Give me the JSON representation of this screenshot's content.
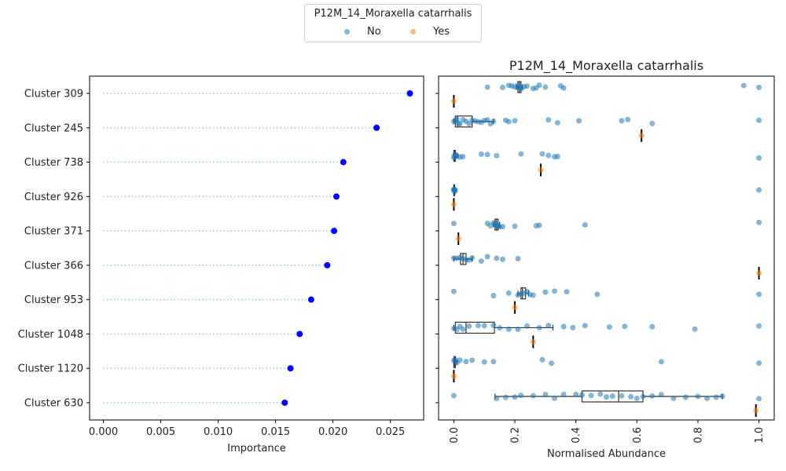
{
  "legend": {
    "title": "P12M_14_Moraxella catarrhalis",
    "items": [
      {
        "label": "No",
        "color": "#8ab4d8"
      },
      {
        "label": "Yes",
        "color": "#f6bc85"
      }
    ]
  },
  "chart_data": [
    {
      "type": "scatter",
      "subtype": "lollipop",
      "title": "",
      "xlabel": "Importance",
      "ylabel": "",
      "xlim": [
        -0.0012,
        0.0279
      ],
      "xticks": [
        "0.000",
        "0.005",
        "0.010",
        "0.015",
        "0.020",
        "0.025"
      ],
      "categories": [
        "Cluster 309",
        "Cluster 245",
        "Cluster 738",
        "Cluster 926",
        "Cluster 371",
        "Cluster 366",
        "Cluster 953",
        "Cluster 1048",
        "Cluster 1120",
        "Cluster 630"
      ],
      "values": [
        0.0267,
        0.0238,
        0.0209,
        0.0203,
        0.0201,
        0.0195,
        0.0181,
        0.0171,
        0.0163,
        0.0158
      ],
      "point_color": "#0000ff",
      "line_color": "#87ceeb",
      "grid": false
    },
    {
      "type": "box",
      "title": "P12M_14_Moraxella catarrhalis",
      "xlabel": "Normalised Abundance",
      "ylabel": "",
      "xlim": [
        -0.05,
        1.05
      ],
      "xticks": [
        "0.0",
        "0.2",
        "0.4",
        "0.6",
        "0.8",
        "1.0"
      ],
      "categories": [
        "Cluster 309",
        "Cluster 245",
        "Cluster 738",
        "Cluster 926",
        "Cluster 371",
        "Cluster 366",
        "Cluster 953",
        "Cluster 1048",
        "Cluster 1120",
        "Cluster 630"
      ],
      "series": [
        {
          "name": "No",
          "color": "#1f77b4",
          "boxes": [
            {
              "q1": 0.21,
              "median": 0.215,
              "q3": 0.22,
              "whisker_low": 0.205,
              "whisker_high": 0.225
            },
            {
              "q1": 0.005,
              "median": 0.012,
              "q3": 0.06,
              "whisker_low": 0.0,
              "whisker_high": 0.13
            },
            {
              "q1": 0.0,
              "median": 0.002,
              "q3": 0.005,
              "whisker_low": 0.0,
              "whisker_high": 0.01
            },
            {
              "q1": 0.0,
              "median": 0.0,
              "q3": 0.002,
              "whisker_low": 0.0,
              "whisker_high": 0.005
            },
            {
              "q1": 0.135,
              "median": 0.14,
              "q3": 0.145,
              "whisker_low": 0.13,
              "whisker_high": 0.15
            },
            {
              "q1": 0.022,
              "median": 0.03,
              "q3": 0.04,
              "whisker_low": 0.0,
              "whisker_high": 0.06
            },
            {
              "q1": 0.22,
              "median": 0.225,
              "q3": 0.235,
              "whisker_low": 0.21,
              "whisker_high": 0.245
            },
            {
              "q1": 0.005,
              "median": 0.04,
              "q3": 0.133,
              "whisker_low": 0.0,
              "whisker_high": 0.325
            },
            {
              "q1": 0.0,
              "median": 0.002,
              "q3": 0.005,
              "whisker_low": 0.0,
              "whisker_high": 0.01
            },
            {
              "q1": 0.42,
              "median": 0.54,
              "q3": 0.62,
              "whisker_low": 0.135,
              "whisker_high": 0.88
            }
          ],
          "points": [
            [
              0.11,
              0.16,
              0.18,
              0.19,
              0.2,
              0.21,
              0.21,
              0.22,
              0.22,
              0.23,
              0.24,
              0.26,
              0.27,
              0.28,
              0.3,
              0.35,
              0.36,
              0.95,
              1.0
            ],
            [
              0.0,
              0.005,
              0.01,
              0.015,
              0.02,
              0.03,
              0.04,
              0.05,
              0.06,
              0.07,
              0.08,
              0.09,
              0.1,
              0.11,
              0.12,
              0.13,
              0.17,
              0.18,
              0.2,
              0.31,
              0.34,
              0.41,
              0.55,
              0.57,
              0.65,
              1.0
            ],
            [
              0.0,
              0.002,
              0.005,
              0.008,
              0.01,
              0.02,
              0.03,
              0.09,
              0.11,
              0.14,
              0.22,
              0.29,
              0.31,
              0.33,
              0.34,
              1.0
            ],
            [
              0.0,
              0.0,
              0.001,
              0.002,
              0.003,
              0.005,
              1.0
            ],
            [
              0.0,
              0.11,
              0.12,
              0.13,
              0.135,
              0.14,
              0.145,
              0.15,
              0.16,
              0.2,
              0.27,
              0.28,
              0.43,
              1.0
            ],
            [
              0.0,
              0.01,
              0.02,
              0.03,
              0.04,
              0.05,
              0.06,
              0.09,
              0.11,
              0.14,
              0.16,
              0.21
            ],
            [
              0.0,
              0.13,
              0.18,
              0.21,
              0.22,
              0.23,
              0.24,
              0.25,
              0.26,
              0.3,
              0.33,
              0.37,
              0.47,
              1.0
            ],
            [
              0.0,
              0.01,
              0.02,
              0.03,
              0.05,
              0.08,
              0.1,
              0.13,
              0.15,
              0.18,
              0.21,
              0.24,
              0.28,
              0.31,
              0.36,
              0.39,
              0.43,
              0.51,
              0.56,
              0.65,
              0.79,
              1.0
            ],
            [
              0.0,
              0.005,
              0.01,
              0.02,
              0.04,
              0.06,
              0.1,
              0.13,
              0.29,
              0.32,
              0.68,
              1.0
            ],
            [
              0.0,
              0.14,
              0.17,
              0.2,
              0.22,
              0.26,
              0.3,
              0.33,
              0.36,
              0.4,
              0.42,
              0.45,
              0.48,
              0.5,
              0.52,
              0.55,
              0.58,
              0.6,
              0.62,
              0.65,
              0.68,
              0.72,
              0.76,
              0.8,
              0.83,
              0.86,
              0.88,
              1.0
            ]
          ]
        },
        {
          "name": "Yes",
          "color": "#ff7f0e",
          "boxes": [
            {
              "median": 0.0
            },
            {
              "median": 0.615
            },
            {
              "median": 0.285
            },
            {
              "median": 0.0
            },
            {
              "median": 0.015
            },
            {
              "median": 1.0
            },
            {
              "median": 0.2
            },
            {
              "median": 0.26
            },
            {
              "median": 0.0
            },
            {
              "median": 0.99
            }
          ],
          "points": [
            [
              0.0
            ],
            [
              0.615
            ],
            [
              0.285
            ],
            [
              0.0
            ],
            [
              0.015
            ],
            [
              1.0
            ],
            [
              0.2
            ],
            [
              0.26
            ],
            [
              0.0
            ],
            [
              0.99
            ]
          ]
        }
      ],
      "grid": false
    }
  ]
}
